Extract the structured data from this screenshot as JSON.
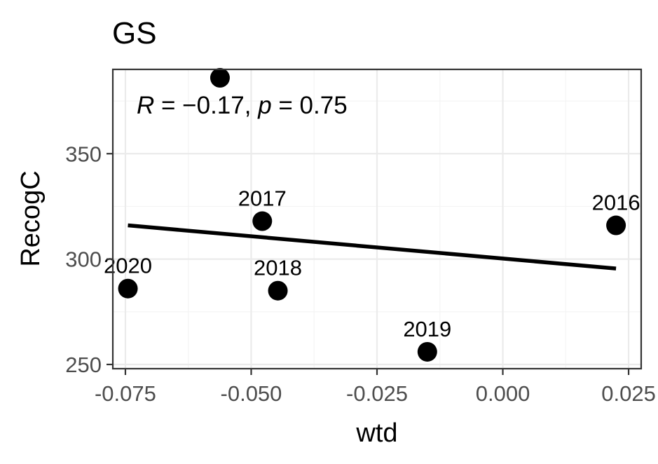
{
  "chart_data": {
    "type": "scatter",
    "title": "GS",
    "xlabel": "wtd",
    "ylabel": "RecogC",
    "xlim": [
      -0.0775,
      0.0275
    ],
    "ylim": [
      248,
      390
    ],
    "x_ticks": [
      -0.075,
      -0.05,
      -0.025,
      0.0,
      0.025
    ],
    "x_tick_labels": [
      "-0.075",
      "-0.050",
      "-0.025",
      "0.000",
      "0.025"
    ],
    "y_ticks": [
      250,
      300,
      350
    ],
    "y_tick_labels": [
      "250",
      "300",
      "350"
    ],
    "grid": true,
    "points": [
      {
        "x": -0.0745,
        "y": 286,
        "label": "2020"
      },
      {
        "x": -0.0562,
        "y": 386,
        "label": ""
      },
      {
        "x": -0.0478,
        "y": 318,
        "label": "2017"
      },
      {
        "x": -0.0447,
        "y": 285,
        "label": "2018"
      },
      {
        "x": -0.015,
        "y": 256,
        "label": "2019"
      },
      {
        "x": 0.0225,
        "y": 316,
        "label": "2016"
      }
    ],
    "regression_line": {
      "x": [
        -0.0745,
        0.0225
      ],
      "y": [
        316,
        295.5
      ]
    },
    "annotation": {
      "R": "R",
      "eq": " = ",
      "r_value": "−0.17",
      "sep": ", ",
      "p": "p",
      "p_value": "0.75"
    },
    "colors": {
      "points": "#000000",
      "line": "#000000",
      "grid": "#ebebeb",
      "axis_text": "#4d4d4d"
    }
  }
}
